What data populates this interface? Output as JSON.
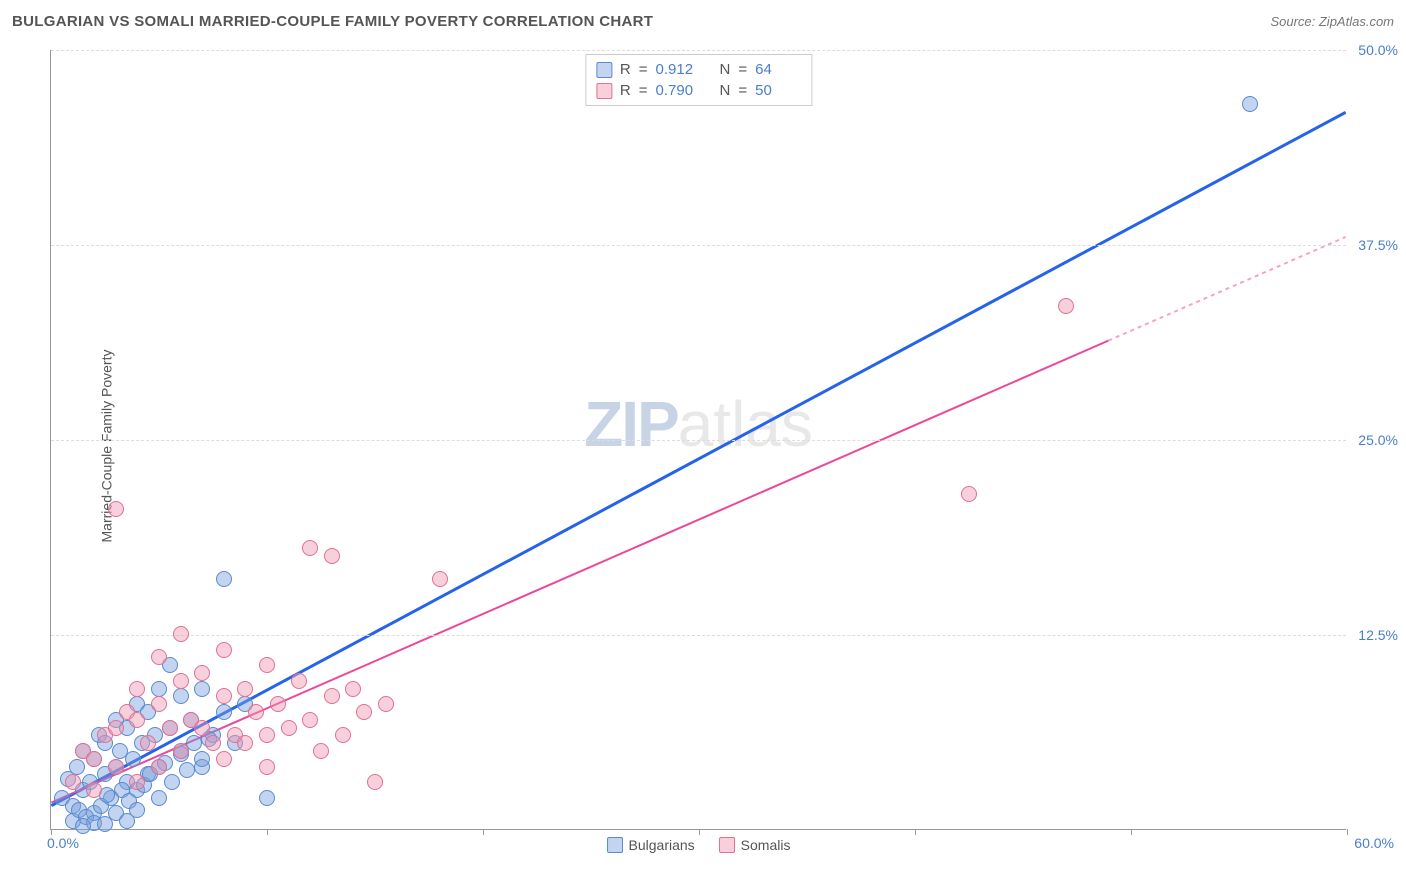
{
  "title": "BULGARIAN VS SOMALI MARRIED-COUPLE FAMILY POVERTY CORRELATION CHART",
  "source_label": "Source: ZipAtlas.com",
  "yaxis_title": "Married-Couple Family Poverty",
  "watermark": {
    "part1": "ZIP",
    "part2": "atlas"
  },
  "chart": {
    "type": "scatter",
    "background_color": "#ffffff",
    "grid_color": "#dddddd",
    "axis_color": "#999999",
    "xlim": [
      0,
      60
    ],
    "ylim": [
      0,
      50
    ],
    "x_ticks": [
      0,
      10,
      20,
      30,
      40,
      50,
      60
    ],
    "y_gridlines": [
      12.5,
      25.0,
      37.5,
      50.0
    ],
    "y_tick_labels": [
      "12.5%",
      "25.0%",
      "37.5%",
      "50.0%"
    ],
    "x_origin_label": "0.0%",
    "x_max_label": "60.0%",
    "axis_label_color": "#4a7ec9",
    "axis_label_fontsize": 14,
    "point_radius": 8,
    "point_opacity": 0.55,
    "series": [
      {
        "name": "Bulgarians",
        "fill_color": "rgba(120,160,220,0.45)",
        "stroke_color": "#5a8bd0",
        "line_color": "#2563eb",
        "line_width": 3,
        "r_value": "0.912",
        "n_value": "64",
        "trend": {
          "x1": 0,
          "y1": 1.5,
          "x2": 60,
          "y2": 46.0,
          "dash_from_x": null
        },
        "points": [
          [
            0.5,
            2.0
          ],
          [
            0.8,
            3.2
          ],
          [
            1.0,
            1.5
          ],
          [
            1.2,
            4.0
          ],
          [
            1.5,
            2.5
          ],
          [
            1.5,
            5.0
          ],
          [
            1.8,
            3.0
          ],
          [
            2.0,
            1.0
          ],
          [
            2.0,
            4.5
          ],
          [
            2.2,
            6.0
          ],
          [
            2.5,
            3.5
          ],
          [
            2.5,
            5.5
          ],
          [
            2.8,
            2.0
          ],
          [
            3.0,
            4.0
          ],
          [
            3.0,
            7.0
          ],
          [
            3.2,
            5.0
          ],
          [
            3.5,
            3.0
          ],
          [
            3.5,
            6.5
          ],
          [
            3.8,
            4.5
          ],
          [
            4.0,
            2.5
          ],
          [
            4.0,
            8.0
          ],
          [
            4.2,
            5.5
          ],
          [
            4.5,
            3.5
          ],
          [
            4.5,
            7.5
          ],
          [
            4.8,
            6.0
          ],
          [
            5.0,
            4.0
          ],
          [
            5.0,
            9.0
          ],
          [
            5.5,
            6.5
          ],
          [
            5.5,
            10.5
          ],
          [
            6.0,
            5.0
          ],
          [
            6.0,
            8.5
          ],
          [
            6.5,
            7.0
          ],
          [
            7.0,
            4.0
          ],
          [
            7.0,
            9.0
          ],
          [
            7.5,
            6.0
          ],
          [
            8.0,
            7.5
          ],
          [
            8.0,
            16.0
          ],
          [
            8.5,
            5.5
          ],
          [
            9.0,
            8.0
          ],
          [
            10.0,
            2.0
          ],
          [
            1.0,
            0.5
          ],
          [
            1.3,
            1.2
          ],
          [
            1.6,
            0.8
          ],
          [
            2.0,
            0.4
          ],
          [
            2.3,
            1.5
          ],
          [
            2.6,
            2.2
          ],
          [
            3.0,
            1.0
          ],
          [
            3.3,
            2.5
          ],
          [
            3.6,
            1.8
          ],
          [
            4.0,
            1.2
          ],
          [
            4.3,
            2.8
          ],
          [
            4.6,
            3.5
          ],
          [
            5.0,
            2.0
          ],
          [
            5.3,
            4.2
          ],
          [
            5.6,
            3.0
          ],
          [
            6.0,
            4.8
          ],
          [
            6.3,
            3.8
          ],
          [
            6.6,
            5.5
          ],
          [
            7.0,
            4.5
          ],
          [
            7.3,
            5.8
          ],
          [
            1.5,
            0.2
          ],
          [
            2.5,
            0.3
          ],
          [
            3.5,
            0.5
          ],
          [
            55.5,
            46.5
          ]
        ]
      },
      {
        "name": "Somalis",
        "fill_color": "rgba(240,150,175,0.45)",
        "stroke_color": "#e07095",
        "line_color": "#ec4899",
        "line_width": 2,
        "r_value": "0.790",
        "n_value": "50",
        "trend": {
          "x1": 0,
          "y1": 1.7,
          "x2": 60,
          "y2": 38.0,
          "dash_from_x": 49
        },
        "points": [
          [
            1.0,
            3.0
          ],
          [
            1.5,
            5.0
          ],
          [
            2.0,
            2.5
          ],
          [
            2.5,
            6.0
          ],
          [
            3.0,
            4.0
          ],
          [
            3.0,
            20.5
          ],
          [
            3.5,
            7.5
          ],
          [
            4.0,
            3.0
          ],
          [
            4.0,
            9.0
          ],
          [
            4.5,
            5.5
          ],
          [
            5.0,
            8.0
          ],
          [
            5.0,
            11.0
          ],
          [
            5.5,
            6.5
          ],
          [
            6.0,
            9.5
          ],
          [
            6.0,
            12.5
          ],
          [
            6.5,
            7.0
          ],
          [
            7.0,
            10.0
          ],
          [
            7.5,
            5.5
          ],
          [
            8.0,
            8.5
          ],
          [
            8.0,
            11.5
          ],
          [
            8.5,
            6.0
          ],
          [
            9.0,
            9.0
          ],
          [
            9.5,
            7.5
          ],
          [
            10.0,
            10.5
          ],
          [
            10.0,
            4.0
          ],
          [
            10.5,
            8.0
          ],
          [
            11.0,
            6.5
          ],
          [
            11.5,
            9.5
          ],
          [
            12.0,
            7.0
          ],
          [
            12.0,
            18.0
          ],
          [
            12.5,
            5.0
          ],
          [
            13.0,
            8.5
          ],
          [
            13.0,
            17.5
          ],
          [
            13.5,
            6.0
          ],
          [
            14.0,
            9.0
          ],
          [
            14.5,
            7.5
          ],
          [
            15.0,
            3.0
          ],
          [
            15.5,
            8.0
          ],
          [
            18.0,
            16.0
          ],
          [
            2.0,
            4.5
          ],
          [
            3.0,
            6.5
          ],
          [
            4.0,
            7.0
          ],
          [
            5.0,
            4.0
          ],
          [
            6.0,
            5.0
          ],
          [
            7.0,
            6.5
          ],
          [
            8.0,
            4.5
          ],
          [
            9.0,
            5.5
          ],
          [
            10.0,
            6.0
          ],
          [
            42.5,
            21.5
          ],
          [
            47.0,
            33.5
          ]
        ]
      }
    ]
  },
  "legend_top": {
    "border_color": "#cccccc",
    "bg_color": "#ffffff",
    "r_label": "R",
    "n_label": "N",
    "eq": "="
  },
  "legend_bottom": {
    "items": [
      "Bulgarians",
      "Somalis"
    ]
  }
}
